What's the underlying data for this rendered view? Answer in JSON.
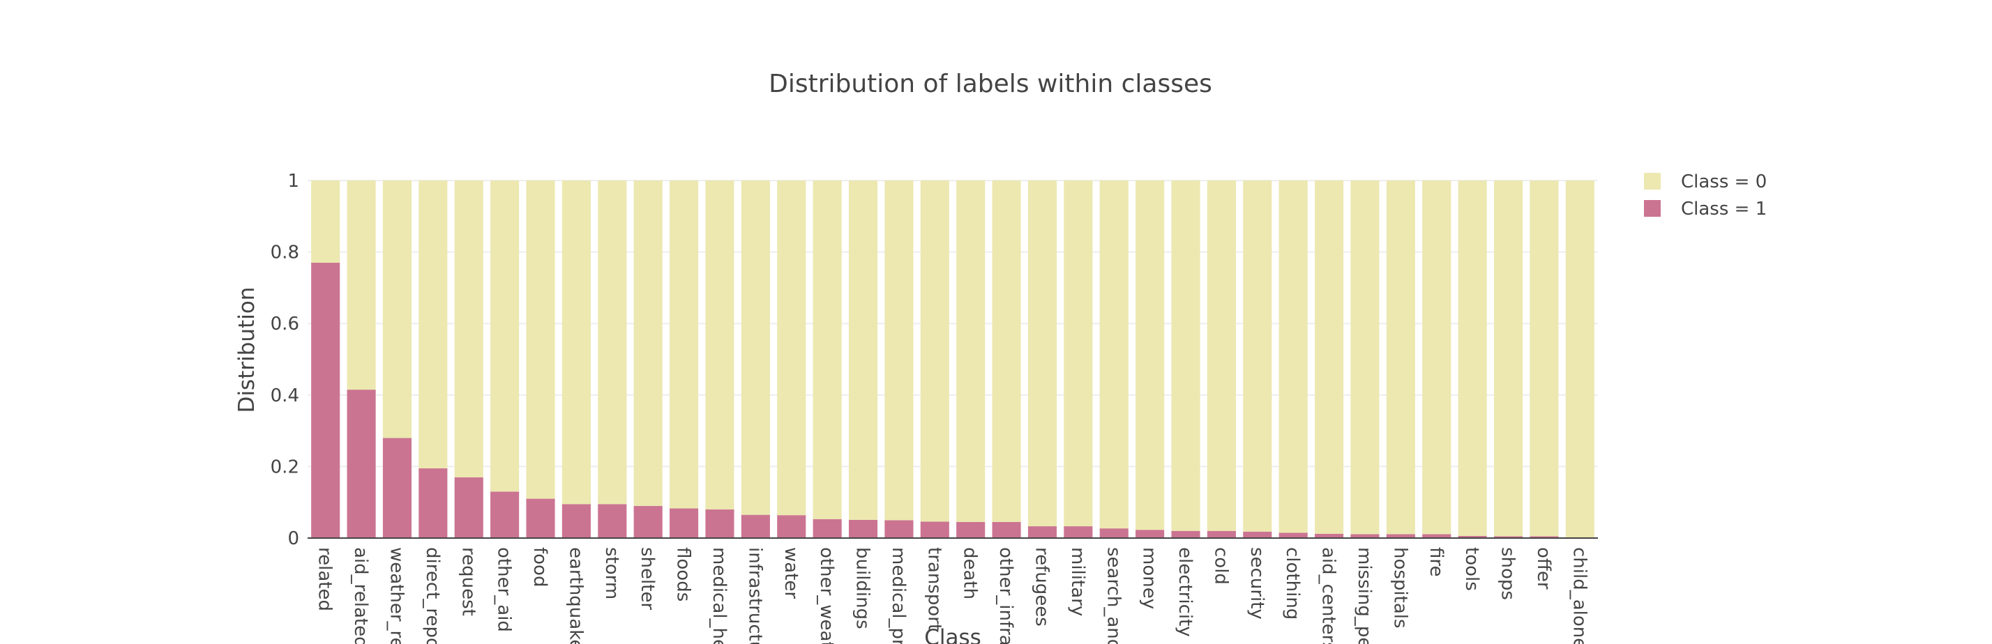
{
  "chart_data": {
    "type": "bar",
    "stacked": true,
    "title": "Distribution of labels within classes",
    "xlabel": "Class",
    "ylabel": "Distribution",
    "ylim": [
      0,
      1
    ],
    "yticks": [
      "0",
      "0.2",
      "0.4",
      "0.6",
      "0.8",
      "1"
    ],
    "grid": true,
    "legend_position": "top-right",
    "categories": [
      "related",
      "aid_related",
      "weather_re",
      "direct_repo",
      "request",
      "other_aid",
      "food",
      "earthquake",
      "storm",
      "shelter",
      "floods",
      "medical_he",
      "infrastructu",
      "water",
      "other_weat",
      "buildings",
      "medical_pr",
      "transport",
      "death",
      "other_infras",
      "refugees",
      "military",
      "search_and",
      "money",
      "electricity",
      "cold",
      "security",
      "clothing",
      "aid_centers",
      "missing_pe",
      "hospitals",
      "fire",
      "tools",
      "shops",
      "offer",
      "child_alone"
    ],
    "series": [
      {
        "name": "Class = 0",
        "color": "#ece8b0",
        "values": [
          0.23,
          0.585,
          0.72,
          0.805,
          0.83,
          0.87,
          0.89,
          0.905,
          0.905,
          0.91,
          0.917,
          0.92,
          0.935,
          0.936,
          0.947,
          0.949,
          0.95,
          0.954,
          0.955,
          0.955,
          0.967,
          0.967,
          0.973,
          0.977,
          0.98,
          0.98,
          0.982,
          0.985,
          0.988,
          0.989,
          0.989,
          0.989,
          0.994,
          0.995,
          0.995,
          1.0
        ]
      },
      {
        "name": "Class = 1",
        "color": "#cb7491",
        "values": [
          0.77,
          0.415,
          0.28,
          0.195,
          0.17,
          0.13,
          0.11,
          0.095,
          0.095,
          0.09,
          0.083,
          0.08,
          0.065,
          0.064,
          0.053,
          0.051,
          0.05,
          0.046,
          0.045,
          0.045,
          0.033,
          0.033,
          0.027,
          0.023,
          0.02,
          0.02,
          0.018,
          0.015,
          0.012,
          0.011,
          0.011,
          0.011,
          0.006,
          0.005,
          0.005,
          0.0
        ]
      }
    ]
  }
}
